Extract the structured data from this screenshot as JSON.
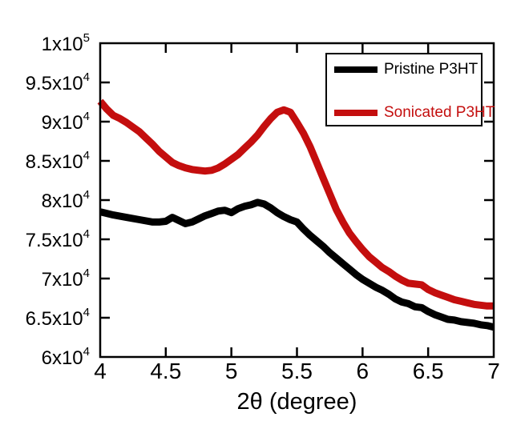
{
  "chart_data": {
    "type": "line",
    "title": "",
    "xlabel": "2θ (degree)",
    "ylabel": "",
    "xlim": [
      4,
      7
    ],
    "ylim": [
      60000,
      100000
    ],
    "grid": false,
    "frame": "boxed-with-inward-mirrored-ticks",
    "axis_color": "#000000",
    "background_color": "#ffffff",
    "x_ticks": [
      {
        "value": 4,
        "label": "4"
      },
      {
        "value": 4.5,
        "label": "4.5"
      },
      {
        "value": 5,
        "label": "5"
      },
      {
        "value": 5.5,
        "label": "5.5"
      },
      {
        "value": 6,
        "label": "6"
      },
      {
        "value": 6.5,
        "label": "6.5"
      },
      {
        "value": 7,
        "label": "7"
      }
    ],
    "y_ticks": [
      {
        "value": 60000,
        "base": "6x10",
        "exp": "4"
      },
      {
        "value": 65000,
        "base": "6.5x10",
        "exp": "4"
      },
      {
        "value": 70000,
        "base": "7x10",
        "exp": "4"
      },
      {
        "value": 75000,
        "base": "7.5x10",
        "exp": "4"
      },
      {
        "value": 80000,
        "base": "8x10",
        "exp": "4"
      },
      {
        "value": 85000,
        "base": "8.5x10",
        "exp": "4"
      },
      {
        "value": 90000,
        "base": "9x10",
        "exp": "4"
      },
      {
        "value": 95000,
        "base": "9.5x10",
        "exp": "4"
      },
      {
        "value": 100000,
        "base": "1x10",
        "exp": "5"
      }
    ],
    "legend": {
      "position": "top-right",
      "border_color": "#000000",
      "entries": [
        {
          "label": "Pristine P3HT",
          "color": "#000000"
        },
        {
          "label": "Sonicated P3HT",
          "color": "#c40e0e"
        }
      ]
    },
    "series": [
      {
        "name": "Pristine P3HT",
        "color": "#000000",
        "line_width": 9,
        "points": [
          [
            4.0,
            78500
          ],
          [
            4.1,
            78100
          ],
          [
            4.2,
            77800
          ],
          [
            4.3,
            77500
          ],
          [
            4.4,
            77200
          ],
          [
            4.45,
            77200
          ],
          [
            4.5,
            77300
          ],
          [
            4.55,
            77800
          ],
          [
            4.6,
            77400
          ],
          [
            4.65,
            77000
          ],
          [
            4.7,
            77200
          ],
          [
            4.75,
            77600
          ],
          [
            4.8,
            78000
          ],
          [
            4.85,
            78300
          ],
          [
            4.9,
            78600
          ],
          [
            4.95,
            78700
          ],
          [
            5.0,
            78400
          ],
          [
            5.05,
            78900
          ],
          [
            5.1,
            79200
          ],
          [
            5.15,
            79400
          ],
          [
            5.2,
            79700
          ],
          [
            5.25,
            79500
          ],
          [
            5.3,
            79000
          ],
          [
            5.35,
            78400
          ],
          [
            5.4,
            77900
          ],
          [
            5.45,
            77500
          ],
          [
            5.5,
            77200
          ],
          [
            5.55,
            76300
          ],
          [
            5.6,
            75500
          ],
          [
            5.65,
            74800
          ],
          [
            5.7,
            74100
          ],
          [
            5.75,
            73300
          ],
          [
            5.8,
            72600
          ],
          [
            5.85,
            71900
          ],
          [
            5.9,
            71200
          ],
          [
            5.95,
            70500
          ],
          [
            6.0,
            69900
          ],
          [
            6.05,
            69400
          ],
          [
            6.1,
            68900
          ],
          [
            6.15,
            68500
          ],
          [
            6.2,
            68000
          ],
          [
            6.25,
            67400
          ],
          [
            6.3,
            67000
          ],
          [
            6.35,
            66800
          ],
          [
            6.4,
            66400
          ],
          [
            6.45,
            66300
          ],
          [
            6.5,
            65800
          ],
          [
            6.55,
            65400
          ],
          [
            6.6,
            65100
          ],
          [
            6.65,
            64800
          ],
          [
            6.7,
            64700
          ],
          [
            6.75,
            64500
          ],
          [
            6.8,
            64400
          ],
          [
            6.85,
            64300
          ],
          [
            6.9,
            64100
          ],
          [
            6.95,
            64000
          ],
          [
            7.0,
            63800
          ]
        ]
      },
      {
        "name": "Sonicated P3HT",
        "color": "#c40e0e",
        "line_width": 9,
        "points": [
          [
            4.0,
            92600
          ],
          [
            4.05,
            91600
          ],
          [
            4.1,
            90800
          ],
          [
            4.15,
            90400
          ],
          [
            4.2,
            89900
          ],
          [
            4.25,
            89300
          ],
          [
            4.3,
            88700
          ],
          [
            4.35,
            87900
          ],
          [
            4.4,
            87100
          ],
          [
            4.45,
            86200
          ],
          [
            4.5,
            85500
          ],
          [
            4.55,
            84800
          ],
          [
            4.6,
            84400
          ],
          [
            4.65,
            84100
          ],
          [
            4.7,
            83900
          ],
          [
            4.75,
            83800
          ],
          [
            4.8,
            83700
          ],
          [
            4.85,
            83800
          ],
          [
            4.9,
            84100
          ],
          [
            4.95,
            84600
          ],
          [
            5.0,
            85200
          ],
          [
            5.05,
            85800
          ],
          [
            5.1,
            86600
          ],
          [
            5.15,
            87400
          ],
          [
            5.2,
            88300
          ],
          [
            5.25,
            89400
          ],
          [
            5.3,
            90400
          ],
          [
            5.35,
            91200
          ],
          [
            5.4,
            91500
          ],
          [
            5.45,
            91200
          ],
          [
            5.5,
            89900
          ],
          [
            5.55,
            88500
          ],
          [
            5.6,
            86800
          ],
          [
            5.65,
            84800
          ],
          [
            5.7,
            82800
          ],
          [
            5.75,
            80800
          ],
          [
            5.8,
            78800
          ],
          [
            5.85,
            77200
          ],
          [
            5.9,
            75800
          ],
          [
            5.95,
            74700
          ],
          [
            6.0,
            73700
          ],
          [
            6.05,
            72800
          ],
          [
            6.1,
            72100
          ],
          [
            6.15,
            71400
          ],
          [
            6.2,
            70900
          ],
          [
            6.25,
            70300
          ],
          [
            6.3,
            69800
          ],
          [
            6.35,
            69400
          ],
          [
            6.4,
            69300
          ],
          [
            6.45,
            69200
          ],
          [
            6.5,
            68600
          ],
          [
            6.55,
            68200
          ],
          [
            6.6,
            67900
          ],
          [
            6.65,
            67600
          ],
          [
            6.7,
            67300
          ],
          [
            6.75,
            67100
          ],
          [
            6.8,
            66900
          ],
          [
            6.85,
            66700
          ],
          [
            6.9,
            66600
          ],
          [
            6.95,
            66500
          ],
          [
            7.0,
            66500
          ]
        ]
      }
    ]
  }
}
